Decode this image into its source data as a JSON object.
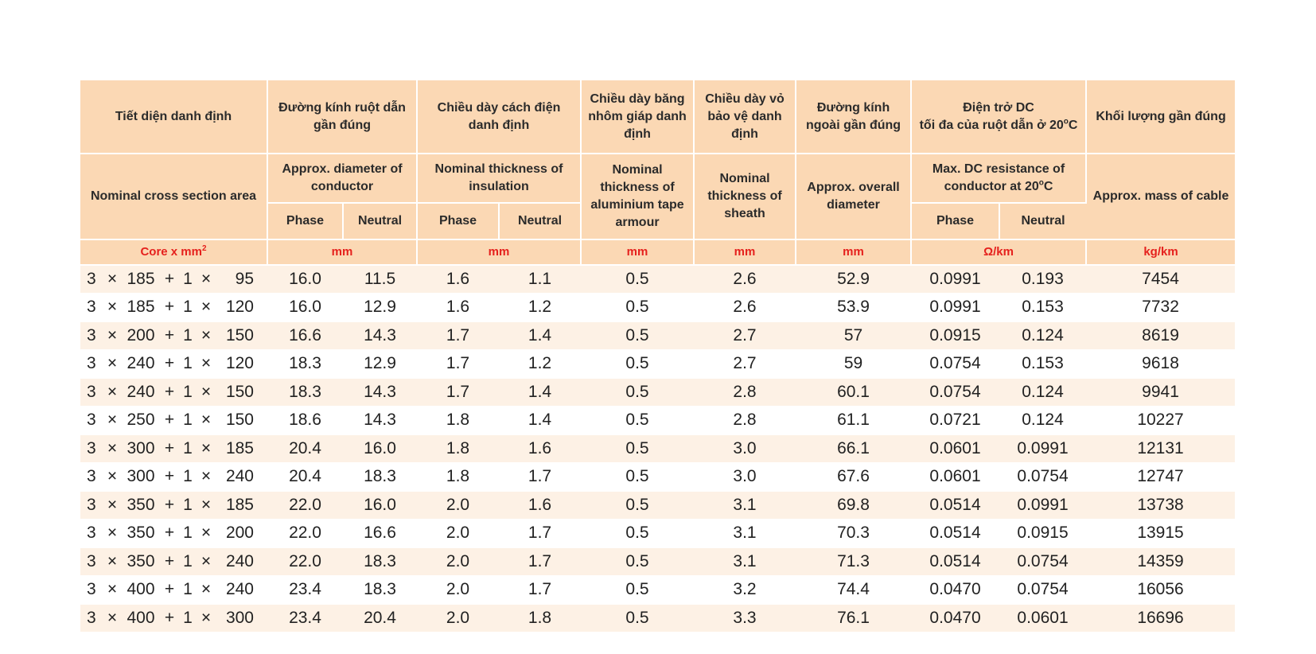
{
  "table": {
    "header_vi": {
      "section": "Tiết diện danh định",
      "conductor_diameter": "Đường kính ruột dẫn gần đúng",
      "insulation": "Chiều dày cách điện danh định",
      "armour": "Chiều dày băng nhôm giáp danh định",
      "sheath": "Chiều dày vỏ bảo vệ danh định",
      "overall_diameter": "Đường kính ngoài gần đúng",
      "resistance_line1": "Điện trở DC",
      "resistance_line2": "tối đa của ruột dẫn ở 20",
      "resistance_unit_sup": "o",
      "resistance_unit": "C",
      "mass": "Khối lượng gần đúng"
    },
    "header_en": {
      "section": "Nominal cross section area",
      "conductor_diameter": "Approx. diameter of conductor",
      "insulation": "Nominal thickness of insulation",
      "armour": "Nominal thickness of aluminium tape armour",
      "sheath": "Nominal thickness of sheath",
      "overall_diameter": "Approx. overall diameter",
      "resistance_prefix": "Max. DC resistance of conductor at 20",
      "resistance_sup": "o",
      "resistance_suffix": "C",
      "mass": "Approx. mass of cable"
    },
    "sub": {
      "phase": "Phase",
      "neutral": "Neutral"
    },
    "units": {
      "section": "Core x mm",
      "section_sup": "2",
      "conductor_diameter": "mm",
      "insulation": "mm",
      "armour": "mm",
      "sheath": "mm",
      "overall_diameter": "mm",
      "resistance": "Ω/km",
      "mass": "kg/km"
    },
    "rows": [
      {
        "c1": "3",
        "x": "×",
        "c2": "185",
        "plus": "+",
        "c3": "1",
        "x2": "×",
        "c4": "95",
        "dp": "16.0",
        "dn": "11.5",
        "ip": "1.6",
        "in": "1.1",
        "arm": "0.5",
        "sh": "2.6",
        "od": "52.9",
        "rp": "0.0991",
        "rn": "0.193",
        "mass": "7454"
      },
      {
        "c1": "3",
        "x": "×",
        "c2": "185",
        "plus": "+",
        "c3": "1",
        "x2": "×",
        "c4": "120",
        "dp": "16.0",
        "dn": "12.9",
        "ip": "1.6",
        "in": "1.2",
        "arm": "0.5",
        "sh": "2.6",
        "od": "53.9",
        "rp": "0.0991",
        "rn": "0.153",
        "mass": "7732"
      },
      {
        "c1": "3",
        "x": "×",
        "c2": "200",
        "plus": "+",
        "c3": "1",
        "x2": "×",
        "c4": "150",
        "dp": "16.6",
        "dn": "14.3",
        "ip": "1.7",
        "in": "1.4",
        "arm": "0.5",
        "sh": "2.7",
        "od": "57",
        "rp": "0.0915",
        "rn": "0.124",
        "mass": "8619"
      },
      {
        "c1": "3",
        "x": "×",
        "c2": "240",
        "plus": "+",
        "c3": "1",
        "x2": "×",
        "c4": "120",
        "dp": "18.3",
        "dn": "12.9",
        "ip": "1.7",
        "in": "1.2",
        "arm": "0.5",
        "sh": "2.7",
        "od": "59",
        "rp": "0.0754",
        "rn": "0.153",
        "mass": "9618"
      },
      {
        "c1": "3",
        "x": "×",
        "c2": "240",
        "plus": "+",
        "c3": "1",
        "x2": "×",
        "c4": "150",
        "dp": "18.3",
        "dn": "14.3",
        "ip": "1.7",
        "in": "1.4",
        "arm": "0.5",
        "sh": "2.8",
        "od": "60.1",
        "rp": "0.0754",
        "rn": "0.124",
        "mass": "9941"
      },
      {
        "c1": "3",
        "x": "×",
        "c2": "250",
        "plus": "+",
        "c3": "1",
        "x2": "×",
        "c4": "150",
        "dp": "18.6",
        "dn": "14.3",
        "ip": "1.8",
        "in": "1.4",
        "arm": "0.5",
        "sh": "2.8",
        "od": "61.1",
        "rp": "0.0721",
        "rn": "0.124",
        "mass": "10227"
      },
      {
        "c1": "3",
        "x": "×",
        "c2": "300",
        "plus": "+",
        "c3": "1",
        "x2": "×",
        "c4": "185",
        "dp": "20.4",
        "dn": "16.0",
        "ip": "1.8",
        "in": "1.6",
        "arm": "0.5",
        "sh": "3.0",
        "od": "66.1",
        "rp": "0.0601",
        "rn": "0.0991",
        "mass": "12131"
      },
      {
        "c1": "3",
        "x": "×",
        "c2": "300",
        "plus": "+",
        "c3": "1",
        "x2": "×",
        "c4": "240",
        "dp": "20.4",
        "dn": "18.3",
        "ip": "1.8",
        "in": "1.7",
        "arm": "0.5",
        "sh": "3.0",
        "od": "67.6",
        "rp": "0.0601",
        "rn": "0.0754",
        "mass": "12747"
      },
      {
        "c1": "3",
        "x": "×",
        "c2": "350",
        "plus": "+",
        "c3": "1",
        "x2": "×",
        "c4": "185",
        "dp": "22.0",
        "dn": "16.0",
        "ip": "2.0",
        "in": "1.6",
        "arm": "0.5",
        "sh": "3.1",
        "od": "69.8",
        "rp": "0.0514",
        "rn": "0.0991",
        "mass": "13738"
      },
      {
        "c1": "3",
        "x": "×",
        "c2": "350",
        "plus": "+",
        "c3": "1",
        "x2": "×",
        "c4": "200",
        "dp": "22.0",
        "dn": "16.6",
        "ip": "2.0",
        "in": "1.7",
        "arm": "0.5",
        "sh": "3.1",
        "od": "70.3",
        "rp": "0.0514",
        "rn": "0.0915",
        "mass": "13915"
      },
      {
        "c1": "3",
        "x": "×",
        "c2": "350",
        "plus": "+",
        "c3": "1",
        "x2": "×",
        "c4": "240",
        "dp": "22.0",
        "dn": "18.3",
        "ip": "2.0",
        "in": "1.7",
        "arm": "0.5",
        "sh": "3.1",
        "od": "71.3",
        "rp": "0.0514",
        "rn": "0.0754",
        "mass": "14359"
      },
      {
        "c1": "3",
        "x": "×",
        "c2": "400",
        "plus": "+",
        "c3": "1",
        "x2": "×",
        "c4": "240",
        "dp": "23.4",
        "dn": "18.3",
        "ip": "2.0",
        "in": "1.7",
        "arm": "0.5",
        "sh": "3.2",
        "od": "74.4",
        "rp": "0.0470",
        "rn": "0.0754",
        "mass": "16056"
      },
      {
        "c1": "3",
        "x": "×",
        "c2": "400",
        "plus": "+",
        "c3": "1",
        "x2": "×",
        "c4": "300",
        "dp": "23.4",
        "dn": "20.4",
        "ip": "2.0",
        "in": "1.8",
        "arm": "0.5",
        "sh": "3.3",
        "od": "76.1",
        "rp": "0.0470",
        "rn": "0.0601",
        "mass": "16696"
      }
    ],
    "colors": {
      "header_bg": "#fbd8b4",
      "stripe_bg": "#fdf1e5",
      "unit_text": "#e5211d"
    }
  }
}
